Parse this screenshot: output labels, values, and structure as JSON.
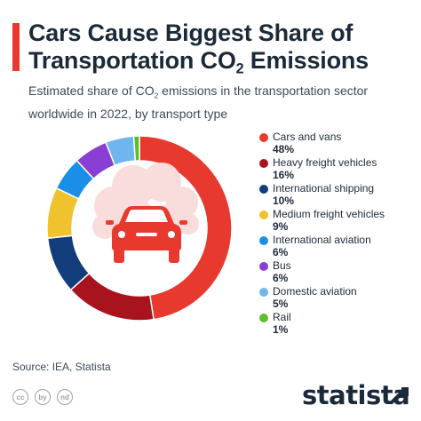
{
  "header": {
    "title_line1": "Cars Cause Biggest Share of",
    "title_line2_pre": "Transportation CO",
    "title_line2_sub": "2",
    "title_line2_post": " Emissions",
    "subtitle_pre": "Estimated share of CO",
    "subtitle_sub": "2",
    "subtitle_post": " emissions in the transportation sector worldwide in 2022, by transport type"
  },
  "chart_data": {
    "type": "pie",
    "variant": "donut",
    "categories": [
      "Cars and vans",
      "Heavy freight vehicles",
      "International shipping",
      "Medium freight vehicles",
      "International aviation",
      "Bus",
      "Domestic aviation",
      "Rail"
    ],
    "values": [
      48,
      16,
      10,
      9,
      6,
      6,
      5,
      1
    ],
    "value_labels": [
      "48%",
      "16%",
      "10%",
      "9%",
      "6%",
      "6%",
      "5%",
      "1%"
    ],
    "colors": [
      "#e8392e",
      "#a8141e",
      "#123d7a",
      "#f0c22e",
      "#1a8fe8",
      "#8a3fd4",
      "#6fb6f0",
      "#5cbf2a"
    ],
    "legend_position": "right",
    "center_icon": "car-on-cloud-icon"
  },
  "footer": {
    "source": "Source: IEA, Statista",
    "cc_icons": [
      "cc",
      "by",
      "nd"
    ],
    "brand": "statista"
  }
}
